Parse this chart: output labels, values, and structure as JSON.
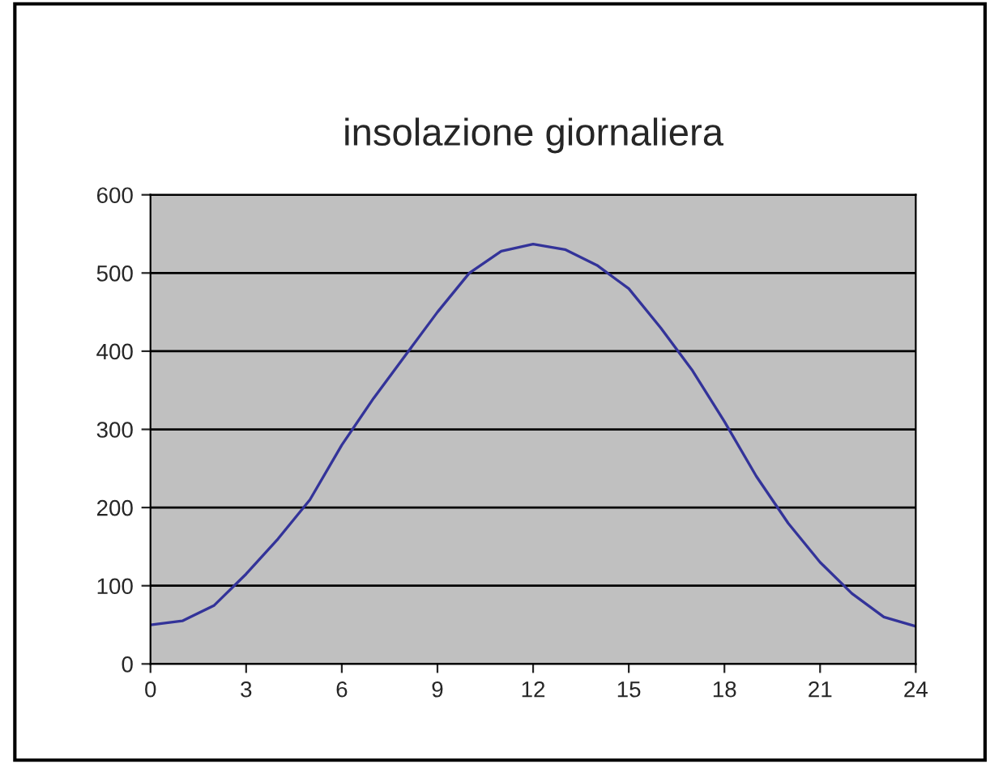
{
  "chart_data": {
    "type": "line",
    "title": "insolazione giornaliera",
    "x": [
      0,
      1,
      2,
      3,
      4,
      5,
      6,
      7,
      8,
      9,
      10,
      11,
      12,
      13,
      14,
      15,
      16,
      17,
      18,
      19,
      20,
      21,
      22,
      23,
      24
    ],
    "series": [
      {
        "color": "#333399",
        "values": [
          50,
          55,
          75,
          115,
          160,
          210,
          280,
          340,
          395,
          450,
          500,
          528,
          537,
          530,
          510,
          480,
          430,
          375,
          310,
          240,
          180,
          130,
          90,
          60,
          48
        ]
      }
    ],
    "xlim": [
      0,
      24
    ],
    "xticks": [
      0,
      3,
      6,
      9,
      12,
      15,
      18,
      21,
      24
    ],
    "ylim": [
      0,
      600
    ],
    "yticks": [
      0,
      100,
      200,
      300,
      400,
      500,
      600
    ],
    "grid": "y",
    "marker": "none",
    "line_style": "solid"
  }
}
